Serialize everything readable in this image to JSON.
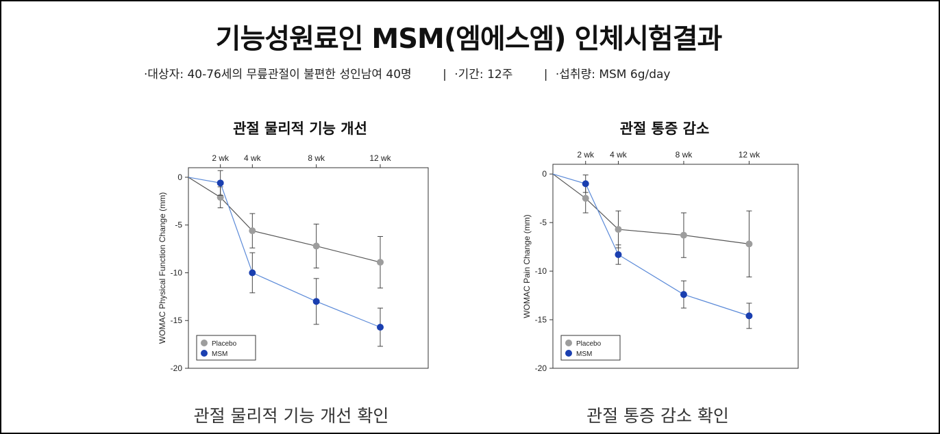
{
  "header": {
    "title": "기능성원료인 MSM(엠에스엠) 인체시험결과",
    "subject": "·대상자: 40-76세의 무릎관절이 불편한 성인남여 40명",
    "separator": "|",
    "period": "·기간: 12주",
    "dose": "·섭취량: MSM 6g/day"
  },
  "colors": {
    "placebo": "#9d9d9d",
    "msm": "#1a3fb0",
    "msm_line": "#5b8ad8",
    "placebo_line": "#555555"
  },
  "chart_data": [
    {
      "type": "line",
      "title": "관절 물리적 기능 개선",
      "caption": "관절 물리적 기능 개선 확인",
      "ylabel": "WOMAC Physical Function Change (mm)",
      "xlabel": "",
      "ylim": [
        -20,
        1
      ],
      "yticks": [
        0,
        -5,
        -10,
        -15,
        -20
      ],
      "ytick_labels": [
        "0",
        "-5",
        "-10",
        "-15",
        "-20"
      ],
      "tick_labels": [
        "2 wk",
        "4 wk",
        "8 wk",
        "12 wk"
      ],
      "tick_weeks": [
        2,
        4,
        8,
        12
      ],
      "series": [
        {
          "name": "Placebo",
          "x": [
            0,
            2,
            4,
            8,
            12
          ],
          "values": [
            0,
            -2.1,
            -5.6,
            -7.2,
            -8.9
          ],
          "err": [
            0,
            1.1,
            1.8,
            2.3,
            2.7
          ]
        },
        {
          "name": "MSM",
          "x": [
            0,
            2,
            4,
            8,
            12
          ],
          "values": [
            0,
            -0.6,
            -10.0,
            -13.0,
            -15.7
          ],
          "err": [
            0,
            1.3,
            2.1,
            2.4,
            2.0
          ]
        }
      ],
      "legend": [
        "Placebo",
        "MSM"
      ]
    },
    {
      "type": "line",
      "title": "관절 통증 감소",
      "caption": "관절 통증 감소 확인",
      "ylabel": "WOMAC Pain Change (mm)",
      "xlabel": "",
      "ylim": [
        -20,
        1
      ],
      "yticks": [
        0,
        -5,
        -10,
        -15,
        -20
      ],
      "ytick_labels": [
        "0",
        "-5",
        "-10",
        "-15",
        "-20"
      ],
      "tick_labels": [
        "2 wk",
        "4 wk",
        "8 wk",
        "12 wk"
      ],
      "tick_weeks": [
        2,
        4,
        8,
        12
      ],
      "series": [
        {
          "name": "Placebo",
          "x": [
            0,
            2,
            4,
            8,
            12
          ],
          "values": [
            0,
            -2.5,
            -5.7,
            -6.3,
            -7.2
          ],
          "err": [
            0,
            1.5,
            1.9,
            2.3,
            3.4
          ]
        },
        {
          "name": "MSM",
          "x": [
            0,
            2,
            4,
            8,
            12
          ],
          "values": [
            0,
            -1.0,
            -8.3,
            -12.4,
            -14.6
          ],
          "err": [
            0,
            0.9,
            1.0,
            1.4,
            1.3
          ]
        }
      ],
      "legend": [
        "Placebo",
        "MSM"
      ]
    }
  ]
}
